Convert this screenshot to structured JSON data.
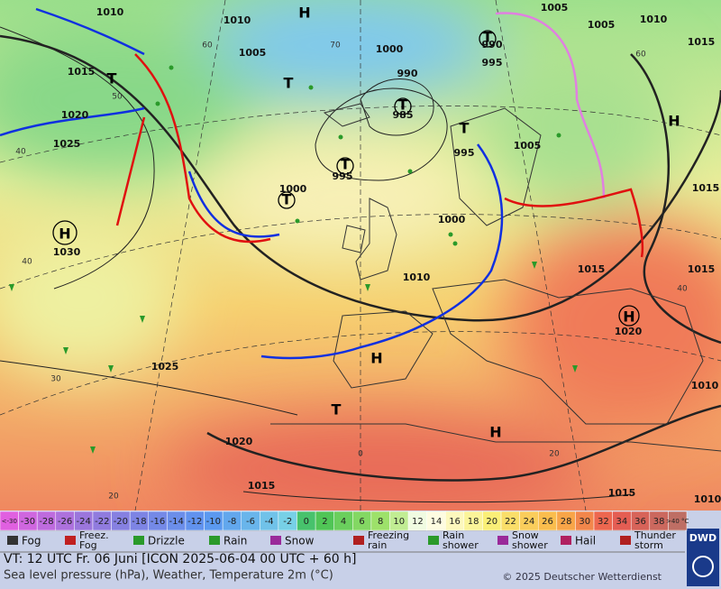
{
  "map": {
    "pressure_labels": [
      "1010",
      "1010",
      "1005",
      "1005",
      "1010",
      "1015",
      "1005",
      "1000",
      "990",
      "985",
      "990",
      "995",
      "1015",
      "1020",
      "1025",
      "1005",
      "995",
      "995",
      "1000",
      "1015",
      "1000",
      "1030",
      "1010",
      "1015",
      "1015",
      "1020",
      "1025",
      "1010",
      "1020",
      "1015",
      "1015",
      "1010"
    ],
    "centers": [
      "H",
      "H",
      "H",
      "H",
      "H",
      "H",
      "T",
      "T",
      "T",
      "T",
      "T",
      "T",
      "T",
      "T"
    ],
    "latitude_labels": [
      "60",
      "70",
      "60",
      "50",
      "40",
      "40",
      "30",
      "20",
      "40",
      "20",
      "0"
    ]
  },
  "legend": {
    "scale": [
      "<-30",
      "-30",
      "-28",
      "-26",
      "-24",
      "-22",
      "-20",
      "-18",
      "-16",
      "-14",
      "-12",
      "-10",
      "-8",
      "-6",
      "-4",
      "-2",
      "0",
      "2",
      "4",
      "6",
      "8",
      "10",
      "12",
      "14",
      "16",
      "18",
      "20",
      "22",
      "24",
      "26",
      "28",
      "30",
      "32",
      "34",
      "36",
      "38",
      ">40 °C"
    ],
    "weather": [
      "Fog",
      "Freez. Fog",
      "Drizzle",
      "Rain",
      "Snow",
      "Freezing rain",
      "Rain shower",
      "Snow shower",
      "Hail",
      "Thunder storm"
    ]
  },
  "footer": {
    "valid_time": "VT: 12 UTC Fr.  06 Juni [ICON 2025-06-04  00 UTC + 60 h]",
    "description": "Sea level pressure (hPa), Weather, Temperature 2m (°C)",
    "copyright": "© 2025 Deutscher Wetterdienst",
    "logo": "DWD"
  }
}
